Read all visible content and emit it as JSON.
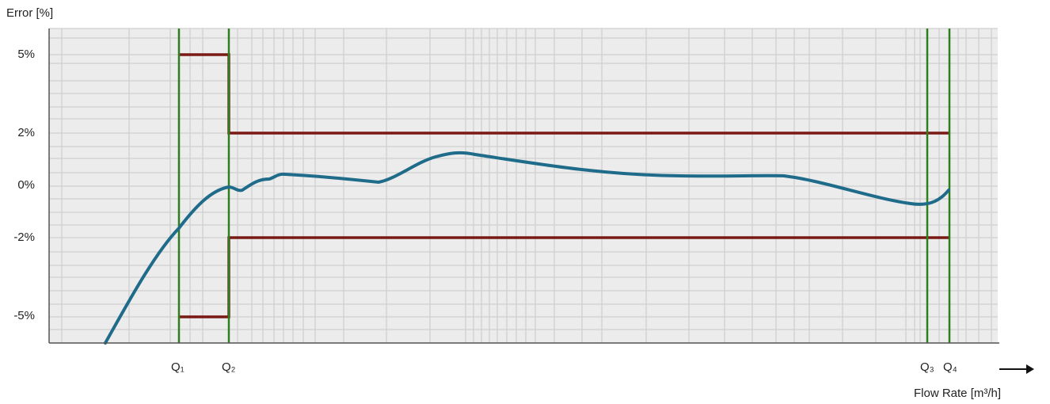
{
  "chart_data": {
    "type": "line",
    "title": "",
    "ylabel": "Error  [%]",
    "xlabel": "Flow  Rate  [m³/h]",
    "ylim": [
      -6,
      6
    ],
    "y_scale": "nonlinear",
    "y_ticks": [
      {
        "label": "5%",
        "value": 5
      },
      {
        "label": "2%",
        "value": 2
      },
      {
        "label": "0%",
        "value": 0
      },
      {
        "label": "-2%",
        "value": -2
      },
      {
        "label": "-5%",
        "value": -5
      }
    ],
    "x_markers": [
      {
        "label": "Q₁"
      },
      {
        "label": "Q₂"
      },
      {
        "label": "Q₃"
      },
      {
        "label": "Q₄"
      }
    ],
    "grid": true,
    "colors": {
      "curve": "#1f6b8a",
      "limits": "#7a1a14",
      "q_lines": "#2e7d1e",
      "grid_fill": "#ececec",
      "grid_line": "#cfcfcf"
    }
  }
}
